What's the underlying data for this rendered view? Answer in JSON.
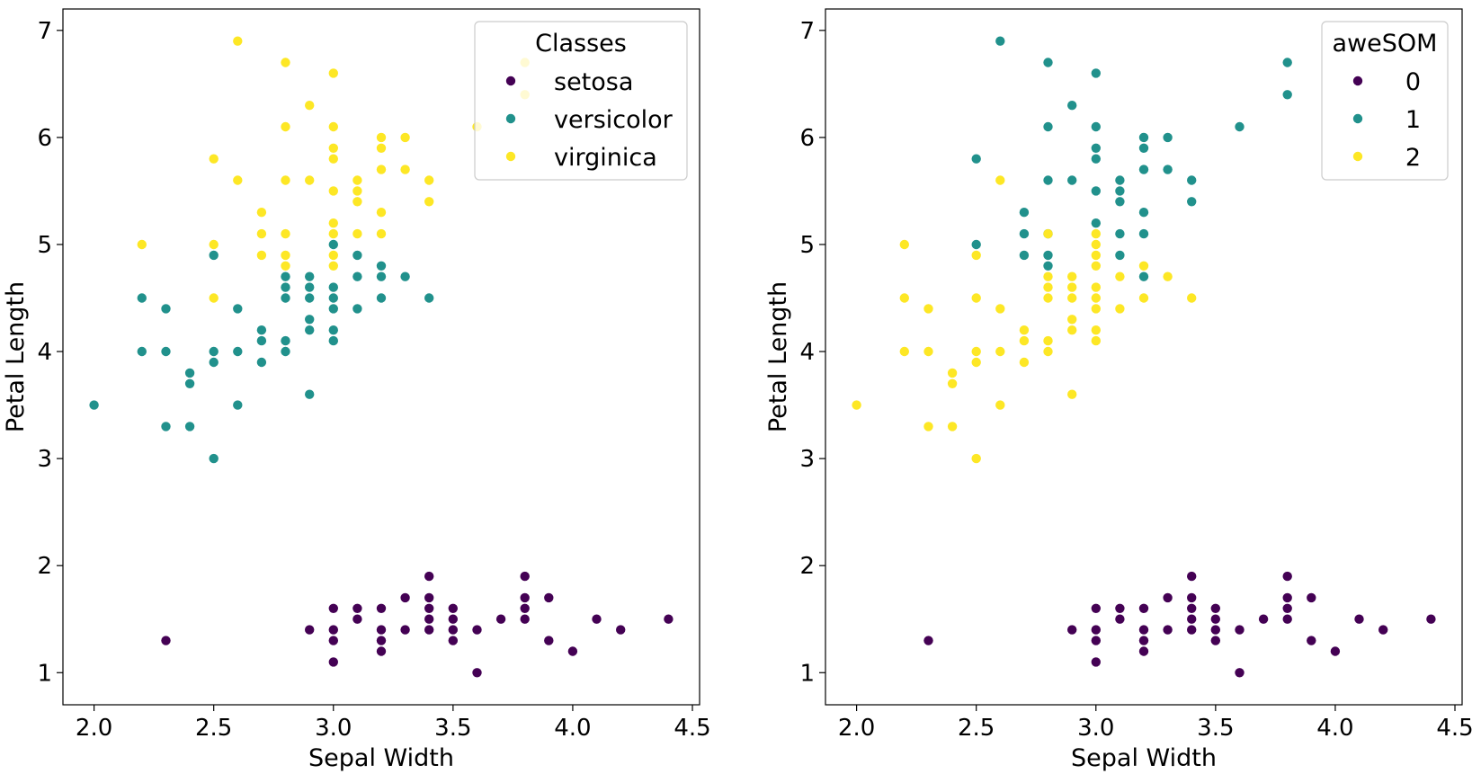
{
  "chart_data": [
    {
      "type": "scatter",
      "title": "",
      "xlabel": "Sepal Width",
      "ylabel": "Petal Length",
      "xlim": [
        1.87,
        4.53
      ],
      "ylim": [
        0.7,
        7.2
      ],
      "xticks": [
        "2.0",
        "2.5",
        "3.0",
        "3.5",
        "4.0",
        "4.5"
      ],
      "yticks": [
        "1",
        "2",
        "3",
        "4",
        "5",
        "6",
        "7"
      ],
      "grid": false,
      "legend": {
        "title": "Classes",
        "position": "top-right",
        "entries": [
          "setosa",
          "versicolor",
          "virginica"
        ]
      },
      "series": [
        {
          "name": "setosa",
          "color": "#440154",
          "points": [
            [
              2.3,
              1.3
            ],
            [
              2.9,
              1.4
            ],
            [
              3.0,
              1.6
            ],
            [
              3.0,
              1.4
            ],
            [
              3.0,
              1.3
            ],
            [
              3.0,
              1.1
            ],
            [
              3.1,
              1.6
            ],
            [
              3.1,
              1.5
            ],
            [
              3.2,
              1.6
            ],
            [
              3.2,
              1.4
            ],
            [
              3.2,
              1.3
            ],
            [
              3.2,
              1.2
            ],
            [
              3.3,
              1.7
            ],
            [
              3.3,
              1.4
            ],
            [
              3.4,
              1.9
            ],
            [
              3.4,
              1.7
            ],
            [
              3.4,
              1.6
            ],
            [
              3.4,
              1.5
            ],
            [
              3.4,
              1.4
            ],
            [
              3.5,
              1.6
            ],
            [
              3.5,
              1.5
            ],
            [
              3.5,
              1.4
            ],
            [
              3.5,
              1.3
            ],
            [
              3.6,
              1.4
            ],
            [
              3.6,
              1.0
            ],
            [
              3.7,
              1.5
            ],
            [
              3.8,
              1.9
            ],
            [
              3.8,
              1.7
            ],
            [
              3.8,
              1.6
            ],
            [
              3.8,
              1.5
            ],
            [
              3.9,
              1.7
            ],
            [
              3.9,
              1.3
            ],
            [
              4.0,
              1.2
            ],
            [
              4.1,
              1.5
            ],
            [
              4.2,
              1.4
            ],
            [
              4.4,
              1.5
            ]
          ]
        },
        {
          "name": "versicolor",
          "color": "#21918c",
          "points": [
            [
              2.0,
              3.5
            ],
            [
              2.2,
              4.5
            ],
            [
              2.2,
              4.0
            ],
            [
              2.3,
              4.4
            ],
            [
              2.3,
              4.0
            ],
            [
              2.3,
              3.3
            ],
            [
              2.4,
              3.8
            ],
            [
              2.4,
              3.7
            ],
            [
              2.4,
              3.3
            ],
            [
              2.5,
              4.9
            ],
            [
              2.5,
              4.0
            ],
            [
              2.5,
              3.9
            ],
            [
              2.5,
              3.0
            ],
            [
              2.6,
              4.4
            ],
            [
              2.6,
              4.0
            ],
            [
              2.6,
              3.5
            ],
            [
              2.7,
              4.2
            ],
            [
              2.7,
              4.1
            ],
            [
              2.7,
              3.9
            ],
            [
              2.8,
              4.7
            ],
            [
              2.8,
              4.6
            ],
            [
              2.8,
              4.5
            ],
            [
              2.8,
              4.1
            ],
            [
              2.8,
              4.0
            ],
            [
              2.9,
              4.7
            ],
            [
              2.9,
              4.6
            ],
            [
              2.9,
              4.5
            ],
            [
              2.9,
              4.3
            ],
            [
              2.9,
              4.2
            ],
            [
              2.9,
              3.6
            ],
            [
              3.0,
              5.0
            ],
            [
              3.0,
              4.6
            ],
            [
              3.0,
              4.5
            ],
            [
              3.0,
              4.4
            ],
            [
              3.0,
              4.2
            ],
            [
              3.0,
              4.1
            ],
            [
              3.1,
              4.9
            ],
            [
              3.1,
              4.7
            ],
            [
              3.1,
              4.4
            ],
            [
              3.2,
              4.8
            ],
            [
              3.2,
              4.7
            ],
            [
              3.2,
              4.5
            ],
            [
              3.3,
              4.7
            ],
            [
              3.4,
              4.5
            ]
          ]
        },
        {
          "name": "virginica",
          "color": "#fde725",
          "points": [
            [
              2.2,
              5.0
            ],
            [
              2.5,
              5.8
            ],
            [
              2.5,
              5.0
            ],
            [
              2.5,
              4.5
            ],
            [
              2.6,
              6.9
            ],
            [
              2.6,
              5.6
            ],
            [
              2.7,
              5.3
            ],
            [
              2.7,
              5.1
            ],
            [
              2.7,
              4.9
            ],
            [
              2.8,
              6.7
            ],
            [
              2.8,
              6.1
            ],
            [
              2.8,
              5.6
            ],
            [
              2.8,
              5.1
            ],
            [
              2.8,
              4.9
            ],
            [
              2.8,
              4.8
            ],
            [
              2.9,
              6.3
            ],
            [
              2.9,
              5.6
            ],
            [
              3.0,
              6.6
            ],
            [
              3.0,
              6.1
            ],
            [
              3.0,
              5.9
            ],
            [
              3.0,
              5.8
            ],
            [
              3.0,
              5.5
            ],
            [
              3.0,
              5.2
            ],
            [
              3.0,
              5.1
            ],
            [
              3.0,
              4.9
            ],
            [
              3.0,
              4.8
            ],
            [
              3.1,
              5.6
            ],
            [
              3.1,
              5.5
            ],
            [
              3.1,
              5.4
            ],
            [
              3.1,
              5.1
            ],
            [
              3.2,
              6.0
            ],
            [
              3.2,
              5.9
            ],
            [
              3.2,
              5.7
            ],
            [
              3.2,
              5.3
            ],
            [
              3.2,
              5.1
            ],
            [
              3.3,
              6.0
            ],
            [
              3.3,
              5.7
            ],
            [
              3.4,
              5.6
            ],
            [
              3.4,
              5.4
            ],
            [
              3.6,
              6.1
            ],
            [
              3.8,
              6.7
            ],
            [
              3.8,
              6.4
            ]
          ]
        }
      ]
    },
    {
      "type": "scatter",
      "title": "",
      "xlabel": "Sepal Width",
      "ylabel": "Petal Length",
      "xlim": [
        1.87,
        4.53
      ],
      "ylim": [
        0.7,
        7.2
      ],
      "xticks": [
        "2.0",
        "2.5",
        "3.0",
        "3.5",
        "4.0",
        "4.5"
      ],
      "yticks": [
        "1",
        "2",
        "3",
        "4",
        "5",
        "6",
        "7"
      ],
      "grid": false,
      "legend": {
        "title": "aweSOM",
        "position": "top-right",
        "entries": [
          "0",
          "1",
          "2"
        ]
      },
      "series": [
        {
          "name": "0",
          "color": "#440154",
          "points": [
            [
              2.3,
              1.3
            ],
            [
              2.9,
              1.4
            ],
            [
              3.0,
              1.6
            ],
            [
              3.0,
              1.4
            ],
            [
              3.0,
              1.3
            ],
            [
              3.0,
              1.1
            ],
            [
              3.1,
              1.6
            ],
            [
              3.1,
              1.5
            ],
            [
              3.2,
              1.6
            ],
            [
              3.2,
              1.4
            ],
            [
              3.2,
              1.3
            ],
            [
              3.2,
              1.2
            ],
            [
              3.3,
              1.7
            ],
            [
              3.3,
              1.4
            ],
            [
              3.4,
              1.9
            ],
            [
              3.4,
              1.7
            ],
            [
              3.4,
              1.6
            ],
            [
              3.4,
              1.5
            ],
            [
              3.4,
              1.4
            ],
            [
              3.5,
              1.6
            ],
            [
              3.5,
              1.5
            ],
            [
              3.5,
              1.4
            ],
            [
              3.5,
              1.3
            ],
            [
              3.6,
              1.4
            ],
            [
              3.6,
              1.0
            ],
            [
              3.7,
              1.5
            ],
            [
              3.8,
              1.9
            ],
            [
              3.8,
              1.7
            ],
            [
              3.8,
              1.6
            ],
            [
              3.8,
              1.5
            ],
            [
              3.9,
              1.7
            ],
            [
              3.9,
              1.3
            ],
            [
              4.0,
              1.2
            ],
            [
              4.1,
              1.5
            ],
            [
              4.2,
              1.4
            ],
            [
              4.4,
              1.5
            ]
          ]
        },
        {
          "name": "1",
          "color": "#21918c",
          "points": [
            [
              2.5,
              5.8
            ],
            [
              2.5,
              5.0
            ],
            [
              2.6,
              6.9
            ],
            [
              2.7,
              5.3
            ],
            [
              2.7,
              5.1
            ],
            [
              2.7,
              4.9
            ],
            [
              2.8,
              6.7
            ],
            [
              2.8,
              6.1
            ],
            [
              2.8,
              5.6
            ],
            [
              2.8,
              5.1
            ],
            [
              2.8,
              4.9
            ],
            [
              2.8,
              4.8
            ],
            [
              2.9,
              6.3
            ],
            [
              2.9,
              5.6
            ],
            [
              3.0,
              6.6
            ],
            [
              3.0,
              6.1
            ],
            [
              3.0,
              5.9
            ],
            [
              3.0,
              5.8
            ],
            [
              3.0,
              5.5
            ],
            [
              3.0,
              5.2
            ],
            [
              3.1,
              5.6
            ],
            [
              3.1,
              5.5
            ],
            [
              3.1,
              5.4
            ],
            [
              3.1,
              5.1
            ],
            [
              3.1,
              4.9
            ],
            [
              3.2,
              6.0
            ],
            [
              3.2,
              5.9
            ],
            [
              3.2,
              5.7
            ],
            [
              3.2,
              5.3
            ],
            [
              3.2,
              5.1
            ],
            [
              3.2,
              4.7
            ],
            [
              3.3,
              6.0
            ],
            [
              3.3,
              5.7
            ],
            [
              3.4,
              5.6
            ],
            [
              3.4,
              5.4
            ],
            [
              3.6,
              6.1
            ],
            [
              3.8,
              6.7
            ],
            [
              3.8,
              6.4
            ]
          ]
        },
        {
          "name": "2",
          "color": "#fde725",
          "points": [
            [
              2.0,
              3.5
            ],
            [
              2.2,
              5.0
            ],
            [
              2.2,
              4.5
            ],
            [
              2.2,
              4.0
            ],
            [
              2.3,
              4.4
            ],
            [
              2.3,
              4.0
            ],
            [
              2.3,
              3.3
            ],
            [
              2.4,
              3.8
            ],
            [
              2.4,
              3.7
            ],
            [
              2.4,
              3.3
            ],
            [
              2.5,
              4.9
            ],
            [
              2.5,
              4.5
            ],
            [
              2.5,
              4.0
            ],
            [
              2.5,
              3.9
            ],
            [
              2.5,
              3.0
            ],
            [
              2.6,
              5.6
            ],
            [
              2.6,
              4.4
            ],
            [
              2.6,
              4.0
            ],
            [
              2.6,
              3.5
            ],
            [
              2.7,
              4.2
            ],
            [
              2.7,
              4.1
            ],
            [
              2.7,
              3.9
            ],
            [
              2.8,
              5.1
            ],
            [
              2.8,
              4.7
            ],
            [
              2.8,
              4.6
            ],
            [
              2.8,
              4.5
            ],
            [
              2.8,
              4.1
            ],
            [
              2.8,
              4.0
            ],
            [
              2.9,
              4.7
            ],
            [
              2.9,
              4.6
            ],
            [
              2.9,
              4.5
            ],
            [
              2.9,
              4.3
            ],
            [
              2.9,
              4.2
            ],
            [
              2.9,
              3.6
            ],
            [
              3.0,
              5.1
            ],
            [
              3.0,
              5.0
            ],
            [
              3.0,
              4.9
            ],
            [
              3.0,
              4.8
            ],
            [
              3.0,
              4.6
            ],
            [
              3.0,
              4.5
            ],
            [
              3.0,
              4.4
            ],
            [
              3.0,
              4.2
            ],
            [
              3.0,
              4.1
            ],
            [
              3.1,
              4.7
            ],
            [
              3.1,
              4.4
            ],
            [
              3.2,
              4.8
            ],
            [
              3.2,
              4.5
            ],
            [
              3.3,
              4.7
            ],
            [
              3.4,
              4.5
            ]
          ]
        }
      ]
    }
  ]
}
